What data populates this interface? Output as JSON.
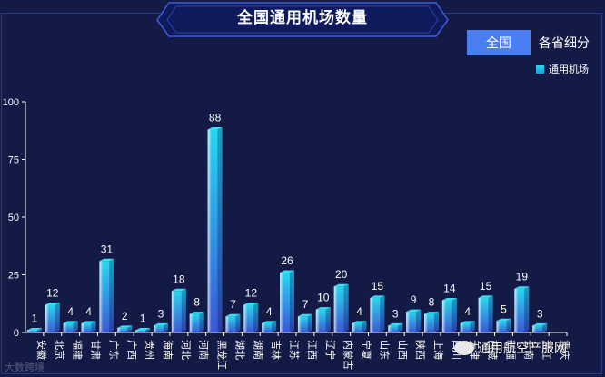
{
  "header": {
    "title": "全国通用机场数量"
  },
  "controls": {
    "national_label": "全国",
    "province_label": "各省细分"
  },
  "watermarks": {
    "left": "大数跨境",
    "right": "通用航空产服网"
  },
  "colors": {
    "background": "#141a46",
    "accent": "#4a7ff2",
    "bar_top": "#29d3f0",
    "bar_bottom": "#3b5bd6",
    "axis": "#ffffff"
  },
  "chart_data": {
    "type": "bar",
    "title": "全国通用机场数量",
    "xlabel": "",
    "ylabel": "",
    "ylim": [
      0,
      100
    ],
    "yticks": [
      0,
      25,
      50,
      75,
      100
    ],
    "grid": false,
    "legend_position": "top-right",
    "categories": [
      "安徽",
      "北京",
      "福建",
      "甘肃",
      "广东",
      "广西",
      "贵州",
      "海南",
      "河北",
      "河南",
      "黑龙江",
      "湖北",
      "湖南",
      "吉林",
      "江苏",
      "江西",
      "辽宁",
      "内蒙古",
      "宁夏",
      "山东",
      "山西",
      "陕西",
      "上海",
      "四川",
      "天津",
      "西藏",
      "新疆",
      "云南",
      "浙江",
      "重庆"
    ],
    "series": [
      {
        "name": "通用机场",
        "values": [
          1,
          12,
          4,
          4,
          31,
          2,
          1,
          3,
          18,
          8,
          88,
          7,
          12,
          4,
          26,
          7,
          10,
          20,
          4,
          15,
          3,
          9,
          8,
          14,
          4,
          15,
          5,
          19,
          3,
          0
        ]
      }
    ]
  }
}
